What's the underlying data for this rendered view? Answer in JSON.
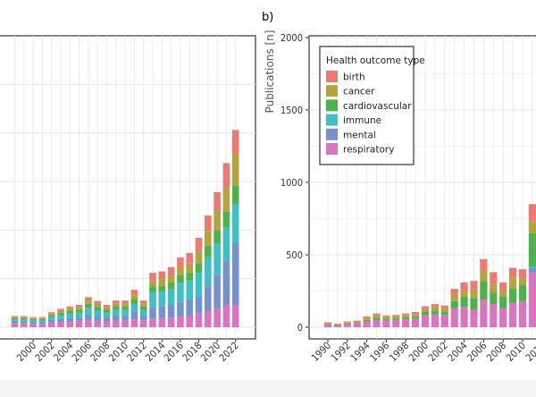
{
  "colors": {
    "birth": "#ec7a72",
    "cancer": "#b5a43e",
    "cardiovascular": "#4cb24a",
    "immune": "#40c0c4",
    "mental": "#7691d0",
    "respiratory": "#d974c0",
    "grid": "#e6e6e6",
    "axis": "#333333",
    "panel_border": "#333333"
  },
  "chart_data": [
    {
      "panel": "a",
      "type": "bar",
      "stacked": true,
      "x": [
        1998,
        1999,
        2000,
        2001,
        2002,
        2003,
        2004,
        2005,
        2006,
        2007,
        2008,
        2009,
        2010,
        2011,
        2012,
        2013,
        2014,
        2015,
        2016,
        2017,
        2018,
        2019,
        2020,
        2021,
        2022
      ],
      "x_tick_labels": [
        "2000",
        "2002",
        "2004",
        "2006",
        "2008",
        "2010",
        "2012",
        "2014",
        "2016",
        "2018",
        "2020",
        "2022"
      ],
      "ylim": [
        0,
        3000
      ],
      "series": [
        {
          "name": "respiratory",
          "values": [
            40,
            40,
            35,
            35,
            50,
            55,
            60,
            65,
            70,
            65,
            60,
            70,
            70,
            80,
            70,
            90,
            95,
            100,
            110,
            120,
            140,
            170,
            190,
            230,
            230
          ]
        },
        {
          "name": "mental",
          "values": [
            20,
            20,
            15,
            15,
            25,
            30,
            35,
            35,
            60,
            50,
            40,
            50,
            50,
            80,
            50,
            120,
            120,
            130,
            150,
            160,
            180,
            250,
            350,
            450,
            640
          ]
        },
        {
          "name": "immune",
          "values": [
            20,
            20,
            20,
            20,
            30,
            40,
            45,
            50,
            70,
            60,
            50,
            60,
            60,
            80,
            60,
            150,
            150,
            160,
            200,
            200,
            240,
            300,
            320,
            350,
            400
          ]
        },
        {
          "name": "cardiovascular",
          "values": [
            15,
            15,
            15,
            15,
            20,
            25,
            30,
            30,
            40,
            35,
            30,
            35,
            35,
            45,
            35,
            60,
            60,
            70,
            80,
            85,
            100,
            120,
            140,
            160,
            190
          ]
        },
        {
          "name": "cancer",
          "values": [
            10,
            10,
            10,
            10,
            15,
            20,
            25,
            25,
            35,
            30,
            25,
            30,
            30,
            40,
            30,
            60,
            70,
            70,
            80,
            90,
            120,
            150,
            200,
            240,
            330
          ]
        },
        {
          "name": "birth",
          "values": [
            10,
            10,
            10,
            10,
            15,
            20,
            20,
            25,
            35,
            30,
            25,
            30,
            30,
            60,
            30,
            80,
            80,
            90,
            100,
            110,
            140,
            160,
            190,
            260,
            240
          ]
        }
      ]
    },
    {
      "panel": "b",
      "type": "bar",
      "stacked": true,
      "panel_label": "b)",
      "ylabel": "Publications [n]",
      "x": [
        1990,
        1991,
        1992,
        1993,
        1994,
        1995,
        1996,
        1997,
        1998,
        1999,
        2000,
        2001,
        2002,
        2003,
        2004,
        2005,
        2006,
        2007,
        2008,
        2009,
        2010,
        2011,
        2012
      ],
      "x_tick_labels": [
        "1990",
        "1992",
        "1994",
        "1996",
        "1998",
        "2000",
        "2002",
        "2004",
        "2006",
        "2008",
        "2010",
        "2012"
      ],
      "y_ticks": [
        0,
        500,
        1000,
        1500,
        2000
      ],
      "ylim": [
        0,
        2000
      ],
      "legend": {
        "title": "Health outcome type",
        "position": "top-left",
        "items": [
          "birth",
          "cancer",
          "cardiovascular",
          "immune",
          "mental",
          "respiratory"
        ]
      },
      "series": [
        {
          "name": "respiratory",
          "values": [
            20,
            10,
            25,
            30,
            40,
            50,
            50,
            50,
            55,
            60,
            85,
            90,
            85,
            130,
            140,
            120,
            190,
            160,
            130,
            170,
            180,
            380,
            360
          ]
        },
        {
          "name": "mental",
          "values": [
            0,
            0,
            0,
            0,
            0,
            0,
            0,
            0,
            0,
            0,
            0,
            0,
            0,
            0,
            0,
            0,
            0,
            0,
            0,
            0,
            0,
            30,
            30
          ]
        },
        {
          "name": "immune",
          "values": [
            0,
            0,
            0,
            0,
            0,
            0,
            0,
            0,
            0,
            0,
            0,
            0,
            0,
            0,
            0,
            0,
            0,
            0,
            0,
            0,
            0,
            10,
            10
          ]
        },
        {
          "name": "cardiovascular",
          "values": [
            5,
            5,
            5,
            5,
            10,
            15,
            10,
            10,
            15,
            15,
            20,
            25,
            25,
            50,
            70,
            80,
            130,
            80,
            80,
            100,
            110,
            230,
            230
          ]
        },
        {
          "name": "cancer",
          "values": [
            5,
            5,
            5,
            5,
            15,
            15,
            10,
            15,
            15,
            15,
            20,
            25,
            20,
            45,
            40,
            60,
            70,
            60,
            50,
            75,
            50,
            80,
            80
          ]
        },
        {
          "name": "birth",
          "values": [
            5,
            5,
            5,
            5,
            10,
            15,
            10,
            10,
            10,
            15,
            20,
            20,
            20,
            40,
            60,
            60,
            80,
            80,
            50,
            65,
            60,
            120,
            100
          ]
        }
      ]
    }
  ]
}
